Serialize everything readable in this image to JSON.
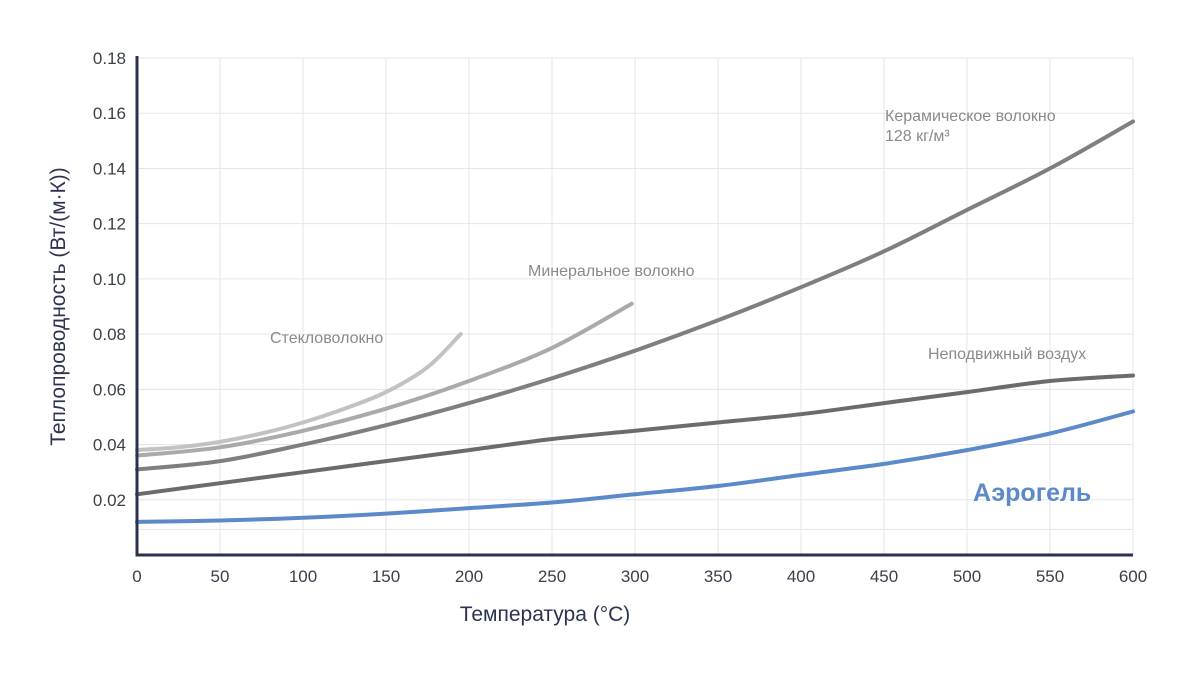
{
  "chart_data": {
    "type": "line",
    "xlabel": "Температура (°C)",
    "ylabel": "Теплопроводность (Вт/(м·К))",
    "xlim": [
      0,
      600
    ],
    "ylim": [
      0,
      0.18
    ],
    "x_ticks": [
      "0",
      "50",
      "100",
      "150",
      "200",
      "250",
      "300",
      "350",
      "400",
      "450",
      "500",
      "550",
      "600"
    ],
    "y_ticks": [
      "0.02",
      "0.04",
      "0.06",
      "0.08",
      "0.10",
      "0.12",
      "0.14",
      "0.16",
      "0.18"
    ],
    "grid": true,
    "series": [
      {
        "name": "Стекловолокно",
        "color": "#c2c2c2",
        "label_lines": [
          "Стекловолокно"
        ],
        "label_color": "#8a8a8a",
        "points": [
          [
            0,
            0.038
          ],
          [
            25,
            0.039
          ],
          [
            50,
            0.041
          ],
          [
            75,
            0.044
          ],
          [
            100,
            0.048
          ],
          [
            125,
            0.053
          ],
          [
            150,
            0.059
          ],
          [
            175,
            0.068
          ],
          [
            195,
            0.08
          ]
        ]
      },
      {
        "name": "Минеральное волокно",
        "color": "#aaaaaa",
        "label_lines": [
          "Минеральное волокно"
        ],
        "label_color": "#8a8a8a",
        "points": [
          [
            0,
            0.036
          ],
          [
            50,
            0.039
          ],
          [
            100,
            0.045
          ],
          [
            150,
            0.053
          ],
          [
            200,
            0.063
          ],
          [
            250,
            0.075
          ],
          [
            298,
            0.091
          ]
        ]
      },
      {
        "name": "Керамическое волокно 128 кг/м³",
        "color": "#7f7f7f",
        "label_lines": [
          "Керамическое волокно",
          "128 кг/м³"
        ],
        "label_color": "#8a8a8a",
        "points": [
          [
            0,
            0.031
          ],
          [
            50,
            0.034
          ],
          [
            100,
            0.04
          ],
          [
            150,
            0.047
          ],
          [
            200,
            0.055
          ],
          [
            250,
            0.064
          ],
          [
            300,
            0.074
          ],
          [
            350,
            0.085
          ],
          [
            400,
            0.097
          ],
          [
            450,
            0.11
          ],
          [
            500,
            0.125
          ],
          [
            550,
            0.14
          ],
          [
            600,
            0.157
          ]
        ]
      },
      {
        "name": "Неподвижный воздух",
        "color": "#6b6b6b",
        "label_lines": [
          "Неподвижный воздух"
        ],
        "label_color": "#8a8a8a",
        "points": [
          [
            0,
            0.022
          ],
          [
            50,
            0.026
          ],
          [
            100,
            0.03
          ],
          [
            150,
            0.034
          ],
          [
            200,
            0.038
          ],
          [
            250,
            0.042
          ],
          [
            300,
            0.045
          ],
          [
            350,
            0.048
          ],
          [
            400,
            0.051
          ],
          [
            450,
            0.055
          ],
          [
            500,
            0.059
          ],
          [
            550,
            0.063
          ],
          [
            600,
            0.065
          ]
        ]
      },
      {
        "name": "Аэрогель",
        "color": "#5b89c9",
        "label_lines": [
          "Аэрогель"
        ],
        "label_color": "#5b89c9",
        "points": [
          [
            0,
            0.012
          ],
          [
            50,
            0.0125
          ],
          [
            100,
            0.0135
          ],
          [
            150,
            0.015
          ],
          [
            200,
            0.017
          ],
          [
            250,
            0.019
          ],
          [
            300,
            0.022
          ],
          [
            350,
            0.025
          ],
          [
            400,
            0.029
          ],
          [
            450,
            0.033
          ],
          [
            500,
            0.038
          ],
          [
            550,
            0.044
          ],
          [
            600,
            0.052
          ]
        ]
      }
    ]
  }
}
